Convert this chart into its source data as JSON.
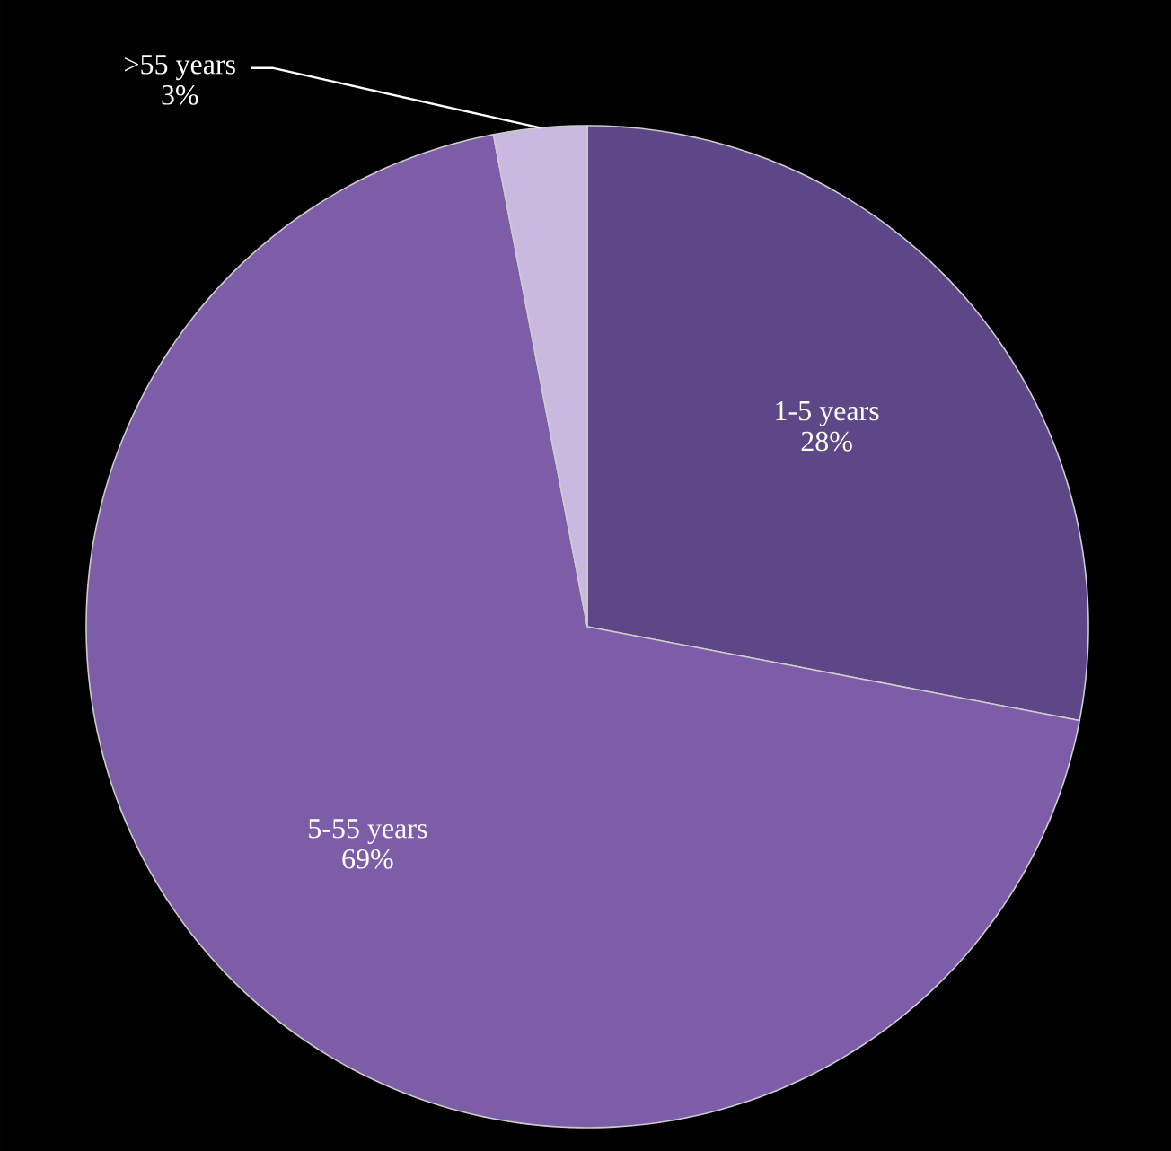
{
  "chart_data": {
    "type": "pie",
    "categories": [
      "1-5 years",
      "5-55 years",
      ">55 years"
    ],
    "values": [
      28,
      69,
      3
    ],
    "value_labels": [
      "28%",
      "69%",
      "3%"
    ],
    "colors": [
      "#5e4787",
      "#7d5ca8",
      "#c9b8e0"
    ]
  }
}
